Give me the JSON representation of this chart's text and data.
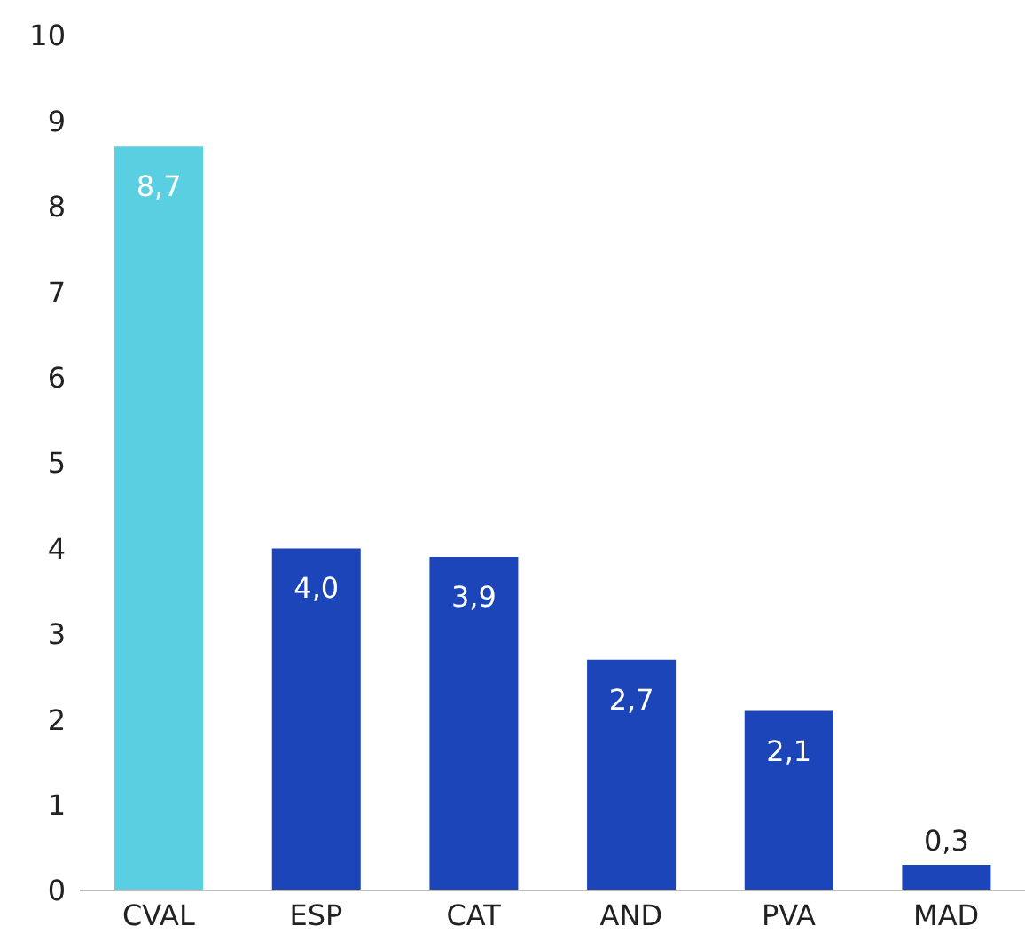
{
  "chart_data": {
    "type": "bar",
    "categories": [
      "CVAL",
      "ESP",
      "CAT",
      "AND",
      "PVA",
      "MAD"
    ],
    "values": [
      8.7,
      4.0,
      3.9,
      2.7,
      2.1,
      0.3
    ],
    "colors": [
      "#5bcfe2",
      "#1b45b9",
      "#1b45b9",
      "#1b45b9",
      "#1b45b9",
      "#1b45b9"
    ],
    "value_labels": [
      "8,7",
      "4,0",
      "3,9",
      "2,7",
      "2,1",
      "0,3"
    ],
    "ylim": [
      0,
      10
    ],
    "yticks": [
      0,
      1,
      2,
      3,
      4,
      5,
      6,
      7,
      8,
      9,
      10
    ],
    "grid": false
  }
}
